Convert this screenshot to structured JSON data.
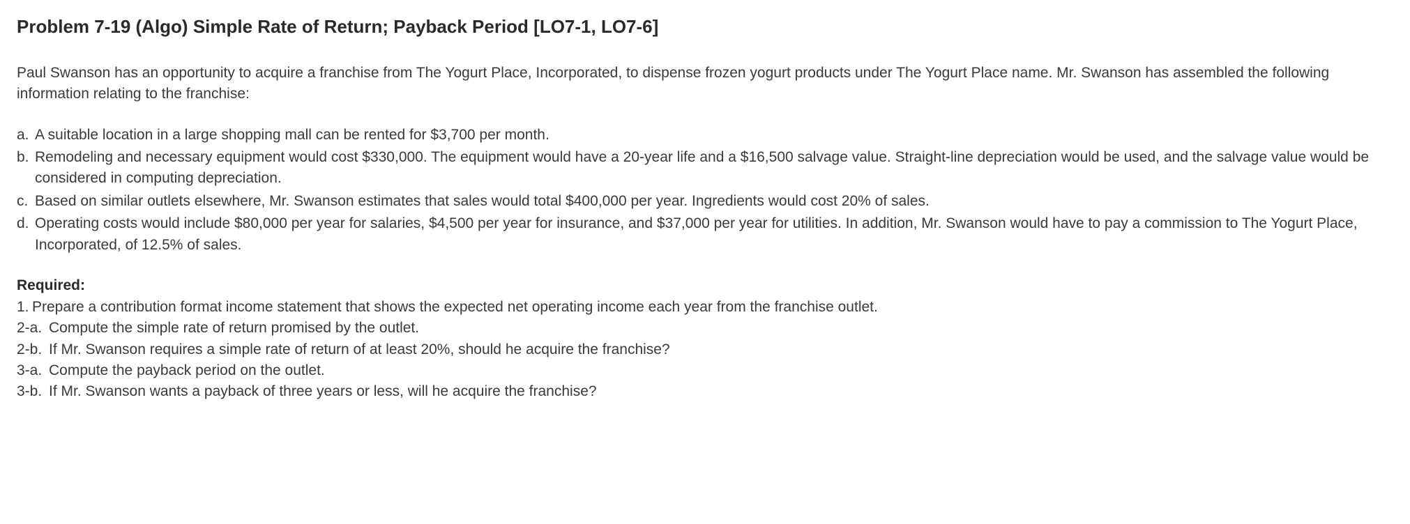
{
  "title": "Problem 7-19 (Algo) Simple Rate of Return; Payback Period [LO7-1, LO7-6]",
  "intro": "Paul Swanson has an opportunity to acquire a franchise from The Yogurt Place, Incorporated, to dispense frozen yogurt products under The Yogurt Place name. Mr. Swanson has assembled the following information relating to the franchise:",
  "info_items": [
    {
      "marker": "a.",
      "text": "A suitable location in a large shopping mall can be rented for $3,700 per month."
    },
    {
      "marker": "b.",
      "text": "Remodeling and necessary equipment would cost $330,000. The equipment would have a 20-year life and a $16,500 salvage value. Straight-line depreciation would be used, and the salvage value would be considered in computing depreciation."
    },
    {
      "marker": "c.",
      "text": "Based on similar outlets elsewhere, Mr. Swanson estimates that sales would total $400,000 per year. Ingredients would cost 20% of sales."
    },
    {
      "marker": "d.",
      "text": "Operating costs would include $80,000 per year for salaries, $4,500 per year for insurance, and $37,000 per year for utilities. In addition, Mr. Swanson would have to pay a commission to The Yogurt Place, Incorporated, of 12.5% of sales."
    }
  ],
  "required_label": "Required:",
  "required_items": [
    {
      "marker": "1.",
      "short": true,
      "text": "Prepare a contribution format income statement that shows the expected net operating income each year from the franchise outlet."
    },
    {
      "marker": "2-a.",
      "short": false,
      "text": "Compute the simple rate of return promised by the outlet."
    },
    {
      "marker": "2-b.",
      "short": false,
      "text": "If Mr. Swanson requires a simple rate of return of at least 20%, should he acquire the franchise?"
    },
    {
      "marker": "3-a.",
      "short": false,
      "text": "Compute the payback period on the outlet."
    },
    {
      "marker": "3-b.",
      "short": false,
      "text": "If Mr. Swanson wants a payback of three years or less, will he acquire the franchise?"
    }
  ],
  "colors": {
    "text": "#3a3a3a",
    "heading": "#2a2a2a",
    "background": "#ffffff"
  },
  "fonts": {
    "body_size": 21,
    "title_size": 26,
    "family": "Arial"
  }
}
